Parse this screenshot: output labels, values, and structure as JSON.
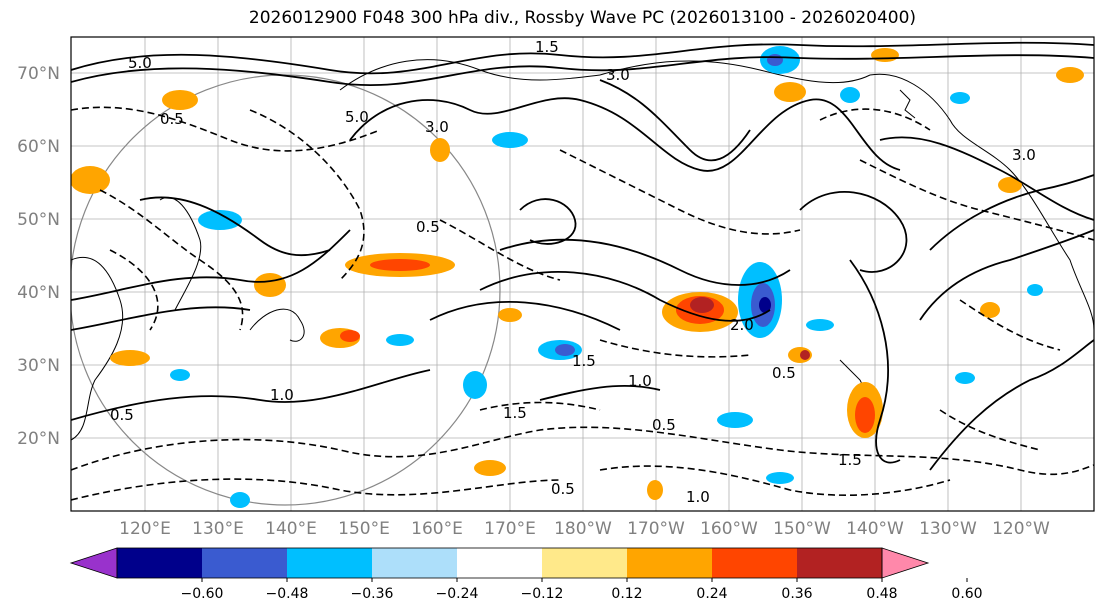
{
  "title": "2026012900 F048 300 hPa div., Rossby Wave PC (2026013100 - 2026020400)",
  "lat_labels": [
    "70°N",
    "60°N",
    "50°N",
    "40°N",
    "30°N",
    "20°N"
  ],
  "lon_labels": [
    "120°E",
    "130°E",
    "140°E",
    "150°E",
    "160°E",
    "170°E",
    "180°W",
    "170°W",
    "160°W",
    "150°W",
    "140°W",
    "130°W",
    "120°W"
  ],
  "contour_labels": [
    "5.0",
    "5.0",
    "3.0",
    "3.0",
    "1.5",
    "0.5",
    "0.5",
    "0.5",
    "1.0",
    "1.0",
    "1.5",
    "1.5",
    "0.5",
    "0.5",
    "1.0",
    "0.5",
    "1.5",
    "2.0",
    "3.0"
  ],
  "colorbar": {
    "colors": [
      "#9932CC",
      "#00008B",
      "#3A5BD0",
      "#00BFFF",
      "#ADDFFA",
      "#FFFFFF",
      "#FFE98A",
      "#FFA500",
      "#FF4500",
      "#B22222",
      "#FF88AA"
    ],
    "tick_labels": [
      "−0.60",
      "−0.48",
      "−0.36",
      "−0.24",
      "−0.12",
      "0.12",
      "0.24",
      "0.36",
      "0.48",
      "0.60"
    ]
  }
}
